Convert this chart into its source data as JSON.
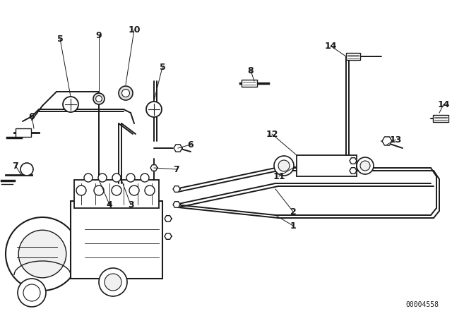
{
  "bg_color": "#ffffff",
  "line_color": "#1a1a1a",
  "part_code": "00004558",
  "figsize": [
    6.4,
    4.48
  ],
  "dpi": 100
}
